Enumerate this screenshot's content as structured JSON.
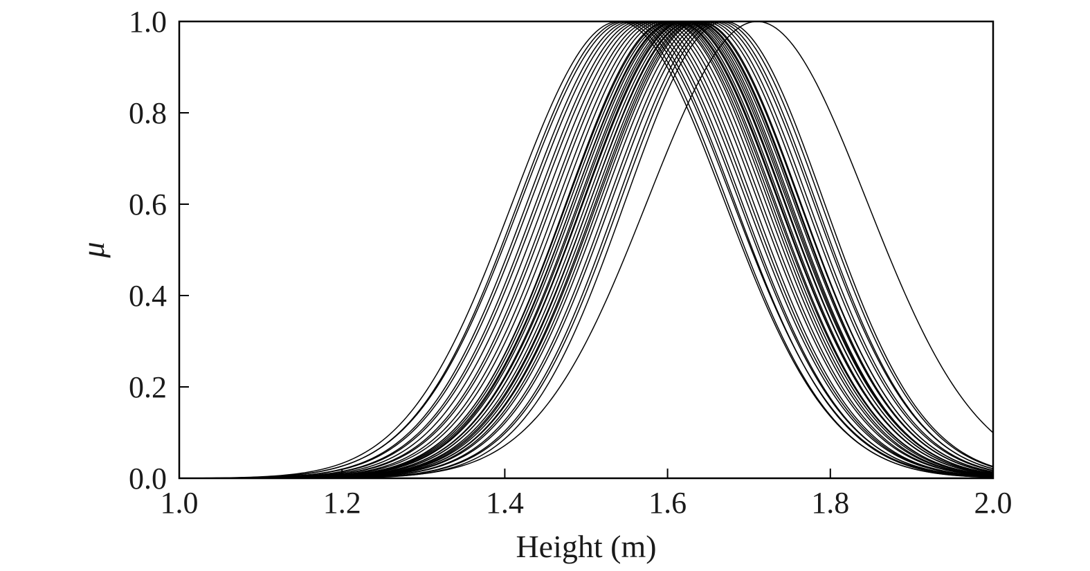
{
  "chart_data": {
    "type": "line",
    "title": "",
    "xlabel": "Height (m)",
    "ylabel": "μ",
    "xlim": [
      1.0,
      2.0
    ],
    "ylim": [
      0.0,
      1.0
    ],
    "xticks": [
      "1.0",
      "1.2",
      "1.4",
      "1.6",
      "1.8",
      "2.0"
    ],
    "yticks": [
      "0.0",
      "0.2",
      "0.4",
      "0.6",
      "0.8",
      "1.0"
    ],
    "grid": false,
    "legend": "none",
    "line_color": "#000000",
    "function": "gaussian membership mu(x) = exp(-((x - center)^2) / (2 * sigma^2))",
    "series": [
      {
        "center": 1.54,
        "sigma": 0.13
      },
      {
        "center": 1.545,
        "sigma": 0.128
      },
      {
        "center": 1.55,
        "sigma": 0.13
      },
      {
        "center": 1.555,
        "sigma": 0.127
      },
      {
        "center": 1.56,
        "sigma": 0.128
      },
      {
        "center": 1.565,
        "sigma": 0.126
      },
      {
        "center": 1.57,
        "sigma": 0.127
      },
      {
        "center": 1.575,
        "sigma": 0.126
      },
      {
        "center": 1.58,
        "sigma": 0.125
      },
      {
        "center": 1.585,
        "sigma": 0.126
      },
      {
        "center": 1.59,
        "sigma": 0.125
      },
      {
        "center": 1.595,
        "sigma": 0.125
      },
      {
        "center": 1.6,
        "sigma": 0.124
      },
      {
        "center": 1.602,
        "sigma": 0.125
      },
      {
        "center": 1.605,
        "sigma": 0.125
      },
      {
        "center": 1.608,
        "sigma": 0.124
      },
      {
        "center": 1.61,
        "sigma": 0.126
      },
      {
        "center": 1.612,
        "sigma": 0.125
      },
      {
        "center": 1.615,
        "sigma": 0.124
      },
      {
        "center": 1.618,
        "sigma": 0.125
      },
      {
        "center": 1.62,
        "sigma": 0.124
      },
      {
        "center": 1.622,
        "sigma": 0.125
      },
      {
        "center": 1.625,
        "sigma": 0.124
      },
      {
        "center": 1.628,
        "sigma": 0.123
      },
      {
        "center": 1.63,
        "sigma": 0.125
      },
      {
        "center": 1.633,
        "sigma": 0.124
      },
      {
        "center": 1.635,
        "sigma": 0.123
      },
      {
        "center": 1.638,
        "sigma": 0.124
      },
      {
        "center": 1.64,
        "sigma": 0.123
      },
      {
        "center": 1.645,
        "sigma": 0.124
      },
      {
        "center": 1.65,
        "sigma": 0.123
      },
      {
        "center": 1.655,
        "sigma": 0.124
      },
      {
        "center": 1.66,
        "sigma": 0.122
      },
      {
        "center": 1.665,
        "sigma": 0.123
      },
      {
        "center": 1.67,
        "sigma": 0.122
      },
      {
        "center": 1.71,
        "sigma": 0.135
      }
    ]
  }
}
